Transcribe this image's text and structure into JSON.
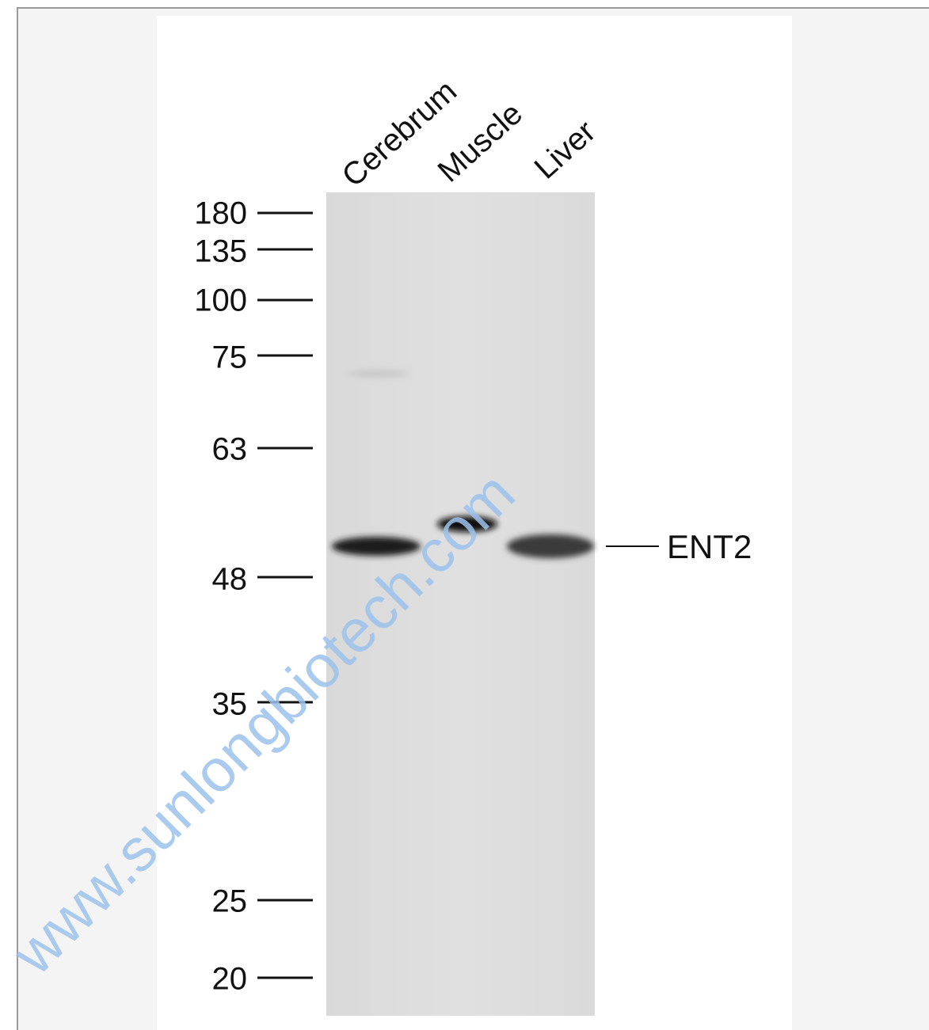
{
  "lanes": [
    "Cerebrum",
    "Muscle",
    "Liver"
  ],
  "markers": [
    "180",
    "135",
    "100",
    "75",
    "63",
    "48",
    "35",
    "25",
    "20"
  ],
  "band_label": "ENT2",
  "watermark": "www.sunlongbiotech.com"
}
